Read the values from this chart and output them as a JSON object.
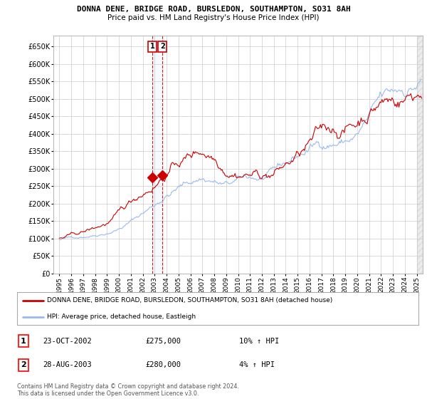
{
  "title": "DONNA DENE, BRIDGE ROAD, BURSLEDON, SOUTHAMPTON, SO31 8AH",
  "subtitle": "Price paid vs. HM Land Registry's House Price Index (HPI)",
  "ylim": [
    0,
    680000
  ],
  "yticks": [
    0,
    50000,
    100000,
    150000,
    200000,
    250000,
    300000,
    350000,
    400000,
    450000,
    500000,
    550000,
    600000,
    650000
  ],
  "background_color": "#ffffff",
  "grid_color": "#cccccc",
  "line1_color": "#cc0000",
  "line2_color": "#99bbee",
  "sale_marker_color": "#cc0000",
  "dashed_line_color": "#cc0000",
  "shade_color": "#ddeeff",
  "legend_line1": "DONNA DENE, BRIDGE ROAD, BURSLEDON, SOUTHAMPTON, SO31 8AH (detached house)",
  "legend_line2": "HPI: Average price, detached house, Eastleigh",
  "transaction1_label": "1",
  "transaction1_date": "23-OCT-2002",
  "transaction1_price": "£275,000",
  "transaction1_hpi": "10% ↑ HPI",
  "transaction2_label": "2",
  "transaction2_date": "28-AUG-2003",
  "transaction2_price": "£280,000",
  "transaction2_hpi": "4% ↑ HPI",
  "footer": "Contains HM Land Registry data © Crown copyright and database right 2024.\nThis data is licensed under the Open Government Licence v3.0.",
  "sale1_x": 2002.8,
  "sale1_y": 275000,
  "sale2_x": 2003.65,
  "sale2_y": 280000,
  "xlim": [
    1994.5,
    2025.5
  ],
  "xticks": [
    1995,
    1996,
    1997,
    1998,
    1999,
    2000,
    2001,
    2002,
    2003,
    2004,
    2005,
    2006,
    2007,
    2008,
    2009,
    2010,
    2011,
    2012,
    2013,
    2014,
    2015,
    2016,
    2017,
    2018,
    2019,
    2020,
    2021,
    2022,
    2023,
    2024,
    2025
  ]
}
